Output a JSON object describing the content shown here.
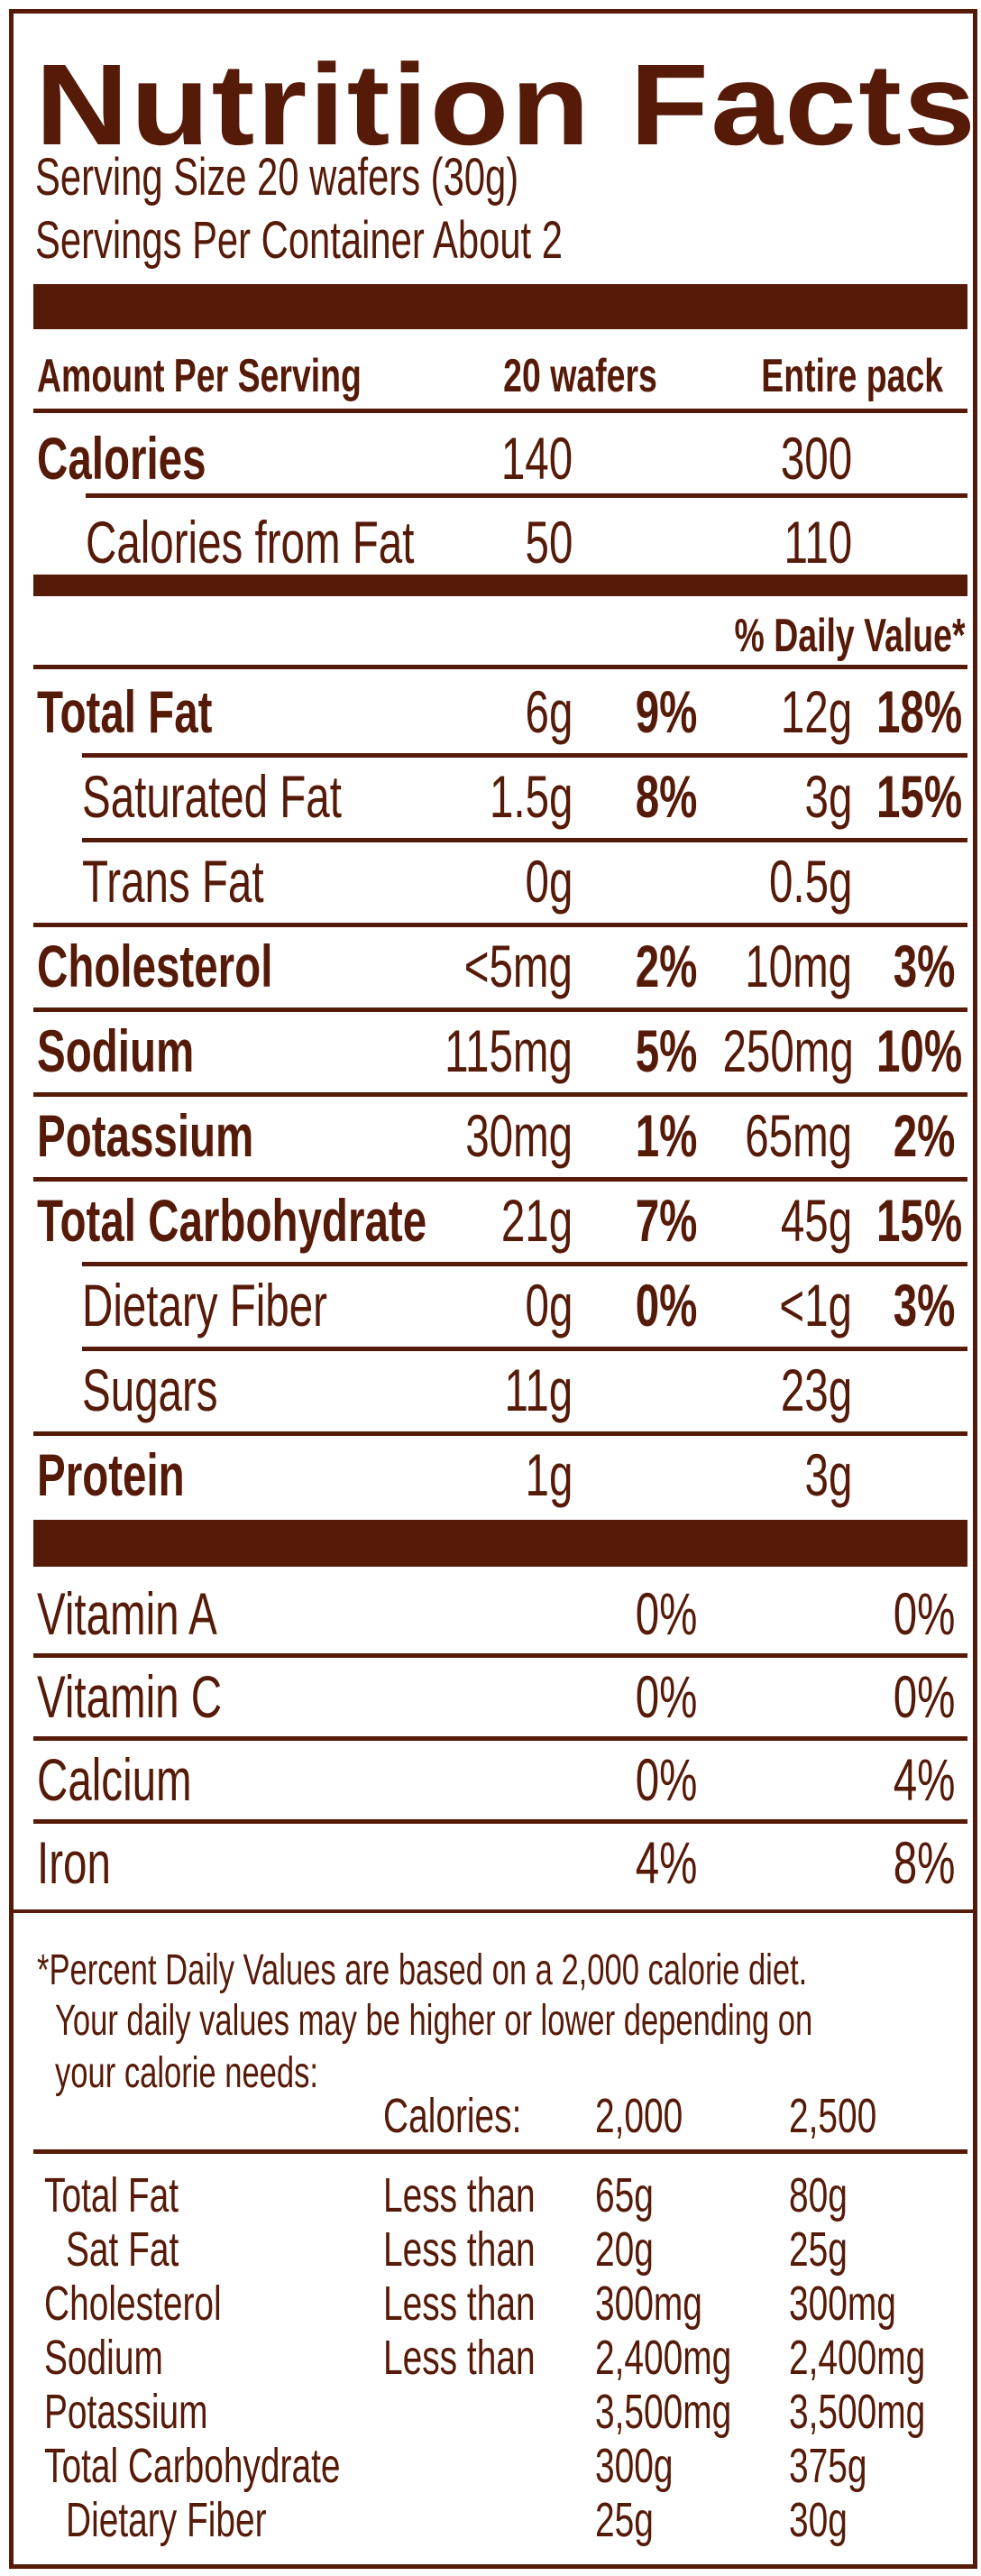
{
  "title": "Nutrition Facts",
  "serving": {
    "size": "Serving Size 20 wafers (30g)",
    "per_container": "Servings Per Container  About 2"
  },
  "header": {
    "amount": "Amount Per Serving",
    "col1": "20 wafers",
    "col2": "Entire pack",
    "dv": "% Daily Value*"
  },
  "calories": {
    "label": "Calories",
    "v1": "140",
    "v2": "300",
    "fat_label": "Calories from Fat",
    "fat_v1": "50",
    "fat_v2": "110"
  },
  "nutrients": [
    {
      "label": "Total Fat",
      "a1": "6g",
      "p1": "9%",
      "a2": "12g",
      "p2": "18%"
    },
    {
      "label": "Saturated Fat",
      "a1": "1.5g",
      "p1": "8%",
      "a2": "3g",
      "p2": "15%"
    },
    {
      "label": "Trans Fat",
      "a1": "0g",
      "p1": "",
      "a2": "0.5g",
      "p2": ""
    },
    {
      "label": "Cholesterol",
      "a1": "<5mg",
      "p1": "2%",
      "a2": "10mg",
      "p2": "3%"
    },
    {
      "label": "Sodium",
      "a1": "115mg",
      "p1": "5%",
      "a2": "250mg",
      "p2": "10%"
    },
    {
      "label": "Potassium",
      "a1": "30mg",
      "p1": "1%",
      "a2": "65mg",
      "p2": "2%"
    },
    {
      "label": "Total Carbohydrate",
      "a1": "21g",
      "p1": "7%",
      "a2": "45g",
      "p2": "15%"
    },
    {
      "label": "Dietary Fiber",
      "a1": "0g",
      "p1": "0%",
      "a2": "<1g",
      "p2": "3%"
    },
    {
      "label": "Sugars",
      "a1": "11g",
      "p1": "",
      "a2": "23g",
      "p2": ""
    },
    {
      "label": "Protein",
      "a1": "1g",
      "p1": "",
      "a2": "3g",
      "p2": ""
    }
  ],
  "vitamins": [
    {
      "label": "Vitamin A",
      "p1": "0%",
      "p2": "0%"
    },
    {
      "label": "Vitamin C",
      "p1": "0%",
      "p2": "0%"
    },
    {
      "label": "Calcium",
      "p1": "0%",
      "p2": "4%"
    },
    {
      "label": "Iron",
      "p1": "4%",
      "p2": "8%"
    }
  ],
  "footnote": {
    "line1": "*Percent Daily Values are based on a 2,000 calorie diet.",
    "line2": "Your daily values may be higher or lower depending on",
    "line3": "your calorie needs:",
    "cal_label": "Calories:",
    "cal1": "2,000",
    "cal2": "2,500",
    "rows": [
      {
        "label": "Total Fat",
        "qual": "Less than",
        "v1": "65g",
        "v2": "80g"
      },
      {
        "label": "Sat Fat",
        "qual": "Less than",
        "v1": "20g",
        "v2": "25g"
      },
      {
        "label": "Cholesterol",
        "qual": "Less than",
        "v1": "300mg",
        "v2": "300mg"
      },
      {
        "label": "Sodium",
        "qual": "Less than",
        "v1": "2,400mg",
        "v2": "2,400mg"
      },
      {
        "label": "Potassium",
        "qual": "",
        "v1": "3,500mg",
        "v2": "3,500mg"
      },
      {
        "label": "Total Carbohydrate",
        "qual": "",
        "v1": "300g",
        "v2": "375g"
      },
      {
        "label": "Dietary Fiber",
        "qual": "",
        "v1": "25g",
        "v2": "30g"
      }
    ]
  },
  "colors": {
    "ink": "#561a08",
    "background": "#ffffff"
  }
}
